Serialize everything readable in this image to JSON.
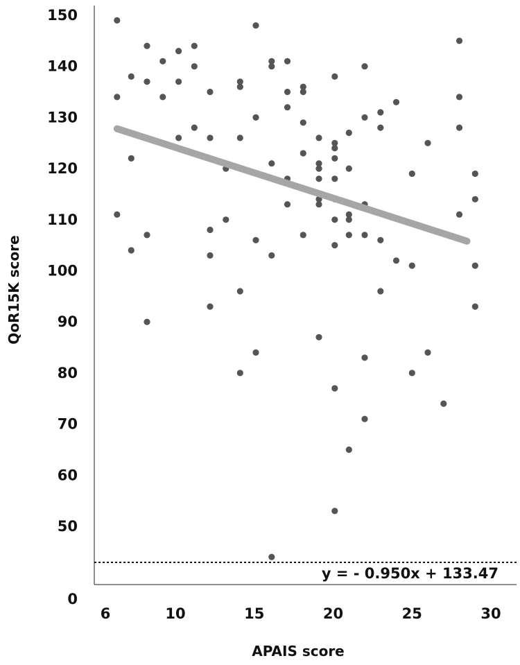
{
  "chart_data": {
    "type": "scatter",
    "xlabel": "APAIS score",
    "ylabel": "QoR15K score",
    "xlim": [
      6,
      30
    ],
    "ylim": [
      0,
      150
    ],
    "y_axis_break": "between 0 and 45",
    "x_ticks": [
      "6",
      "10",
      "15",
      "20",
      "25",
      "30"
    ],
    "y_ticks": [
      "0",
      "50",
      "60",
      "70",
      "80",
      "90",
      "100",
      "110",
      "120",
      "130",
      "140",
      "150"
    ],
    "trendline": {
      "label": "y = - 0.950x + 133.47",
      "slope": -0.95,
      "intercept": 133.47,
      "x_start": 6.3,
      "x_end": 28.0,
      "color": "#a6a6a6"
    },
    "point_color": "#555555",
    "points": [
      [
        6.3,
        149
      ],
      [
        6.3,
        134
      ],
      [
        6.3,
        111
      ],
      [
        7.2,
        138
      ],
      [
        7.2,
        122
      ],
      [
        7.2,
        104
      ],
      [
        8.2,
        144
      ],
      [
        8.2,
        137
      ],
      [
        8.2,
        107
      ],
      [
        8.2,
        90
      ],
      [
        9.2,
        141
      ],
      [
        9.2,
        134
      ],
      [
        10.2,
        143
      ],
      [
        10.2,
        137
      ],
      [
        10.2,
        126
      ],
      [
        11.2,
        144
      ],
      [
        11.2,
        140
      ],
      [
        11.2,
        128
      ],
      [
        12.2,
        135
      ],
      [
        12.2,
        126
      ],
      [
        12.2,
        108
      ],
      [
        12.2,
        103
      ],
      [
        12.2,
        93
      ],
      [
        13.2,
        120
      ],
      [
        13.2,
        110
      ],
      [
        14.1,
        137
      ],
      [
        14.1,
        136
      ],
      [
        14.1,
        126
      ],
      [
        14.1,
        96
      ],
      [
        14.1,
        80
      ],
      [
        15.1,
        148
      ],
      [
        15.1,
        130
      ],
      [
        15.1,
        106
      ],
      [
        15.1,
        84
      ],
      [
        16.1,
        141
      ],
      [
        16.1,
        140
      ],
      [
        16.1,
        121
      ],
      [
        16.1,
        103
      ],
      [
        16.1,
        44
      ],
      [
        17.1,
        141
      ],
      [
        17.1,
        135
      ],
      [
        17.1,
        132
      ],
      [
        17.1,
        118
      ],
      [
        17.1,
        113
      ],
      [
        18.1,
        136
      ],
      [
        18.1,
        135
      ],
      [
        18.1,
        129
      ],
      [
        18.1,
        123
      ],
      [
        18.1,
        107
      ],
      [
        19.1,
        126
      ],
      [
        19.1,
        121
      ],
      [
        19.1,
        120
      ],
      [
        19.1,
        118
      ],
      [
        19.1,
        114
      ],
      [
        19.1,
        113
      ],
      [
        19.1,
        87
      ],
      [
        20.1,
        138
      ],
      [
        20.1,
        125
      ],
      [
        20.1,
        124
      ],
      [
        20.1,
        122
      ],
      [
        20.1,
        118
      ],
      [
        20.1,
        114
      ],
      [
        20.1,
        110
      ],
      [
        20.1,
        105
      ],
      [
        20.1,
        77
      ],
      [
        20.1,
        53
      ],
      [
        21.0,
        127
      ],
      [
        21.0,
        120
      ],
      [
        21.0,
        111
      ],
      [
        21.0,
        110
      ],
      [
        21.0,
        107
      ],
      [
        21.0,
        65
      ],
      [
        22.0,
        140
      ],
      [
        22.0,
        130
      ],
      [
        22.0,
        113
      ],
      [
        22.0,
        107
      ],
      [
        22.0,
        83
      ],
      [
        22.0,
        71
      ],
      [
        23.0,
        131
      ],
      [
        23.0,
        128
      ],
      [
        23.0,
        106
      ],
      [
        23.0,
        96
      ],
      [
        24.0,
        133
      ],
      [
        24.0,
        102
      ],
      [
        25.0,
        119
      ],
      [
        25.0,
        101
      ],
      [
        25.0,
        80
      ],
      [
        26.0,
        125
      ],
      [
        26.0,
        84
      ],
      [
        27.0,
        74
      ],
      [
        28.0,
        145
      ],
      [
        28.0,
        134
      ],
      [
        28.0,
        128
      ],
      [
        28.0,
        111
      ],
      [
        29.0,
        119
      ],
      [
        29.0,
        114
      ],
      [
        29.0,
        101
      ],
      [
        29.0,
        93
      ]
    ]
  }
}
